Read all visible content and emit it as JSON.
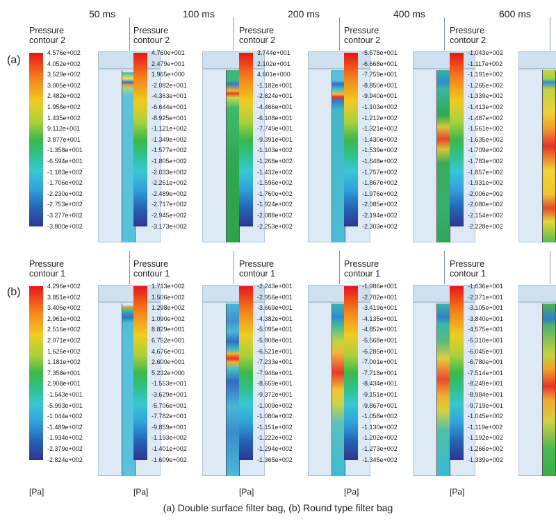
{
  "time_labels": [
    "50 ms",
    "100 ms",
    "200 ms",
    "400 ms",
    "600 ms"
  ],
  "rows": [
    {
      "label": "(a)",
      "panel_title": "Pressure\ncontour 2",
      "panels": [
        {
          "ticks": [
            "4.576e+002",
            "4.052e+002",
            "3.529e+002",
            "3.005e+002",
            "2.482e+002",
            "1.958e+002",
            "1.435e+002",
            "9.112e+001",
            "3.877e+001",
            "-1.358e+001",
            "-6.594e+001",
            "-1.183e+002",
            "-1.706e+002",
            "-2.230e+002",
            "-2.753e+002",
            "-3.277e+002",
            "-3.800e+002"
          ],
          "fill": "linear-gradient(to bottom, #d9e7f1 0%, #d9e7f1 1%, #3fb9b3 1.5%, #ffe04a 5%, #2f79c9 7%, #f0a83a 9%, #9bd4a0 11%, #5cc3d8 15%, #58c2dc 100%)"
        },
        {
          "ticks": [
            "4.760e+001",
            "2.479e+001",
            "1.965e+000",
            "-2.082e+001",
            "-4.363e+001",
            "-6.644e+001",
            "-8.925e+001",
            "-1.121e+002",
            "-1.349e+002",
            "-1.577e+002",
            "-1.805e+002",
            "-2.033e+002",
            "-2.261e+002",
            "-2.489e+002",
            "-2.717e+002",
            "-2.945e+002",
            "-3.173e+002"
          ],
          "fill": "linear-gradient(to bottom, #3db77a 0%, #3db77a 6%, #2f7ccb 8%, #f7b32b 12%, #e9412a 13.5%, #c9d94a 16%, #42b96a 22%, #2ea64f 55%, #2fa34c 100%)"
        },
        {
          "ticks": [
            "3.744e+001",
            "2.102e+001",
            "4.601e+000",
            "-1.182e+001",
            "-2.824e+001",
            "-4.466e+001",
            "-6.108e+001",
            "-7.749e+001",
            "-9.391e+001",
            "-1.103e+002",
            "-1.268e+002",
            "-1.432e+002",
            "-1.596e+002",
            "-1.760e+002",
            "-1.924e+002",
            "-2.088e+002",
            "-2.253e+002"
          ],
          "fill": "linear-gradient(to bottom, #59bfdc 0%, #59bfdc 6%, #2f6fc4 8%, #45bdd2 11%, #f0c238 14%, #e5342b 15.5%, #2d7fcc 18%, #43b7c4 23%, #4fbcd9 100%)"
        },
        {
          "ticks": [
            "-5.578e+001",
            "-6.668e+001",
            "-7.759e+001",
            "-8.850e+001",
            "-9.940e+001",
            "-1.103e+002",
            "-1.212e+002",
            "-1.321e+002",
            "-1.430e+002",
            "-1.539e+002",
            "-1.648e+002",
            "-1.757e+002",
            "-1.867e+002",
            "-1.976e+002",
            "-2.085e+002",
            "-2.194e+002",
            "-2.303e+002"
          ],
          "fill": "linear-gradient(to bottom, #33b59d 0%, #2e8fd0 7%, #39b6a0 11%, #2fa958 26%, #d4c53c 33%, #ea4528 40%, #d6c43a 46%, #38ad57 54%, #36b06a 80%, #2ea65a 100%)"
        },
        {
          "ticks": [
            "-1.043e+002",
            "-1.117e+002",
            "-1.191e+002",
            "-1.265e+002",
            "-1.339e+002",
            "-1.413e+002",
            "-1.487e+002",
            "-1.561e+002",
            "-1.635e+002",
            "-1.709e+002",
            "-1.783e+002",
            "-1.857e+002",
            "-1.931e+002",
            "-2.006e+002",
            "-2.080e+002",
            "-2.154e+002",
            "-2.228e+002"
          ],
          "fill": "linear-gradient(to bottom, #c6d348 0%, #9bd049 5%, #2e8fd0 7%, #bcd44a 11%, #f1cf33 25%, #f09a2a 34%, #e6322a 44%, #f1d534 58%, #eec730 72%, #e44b2a 80%, #e7d33a 88%, #57bd4f 100%)"
        }
      ]
    },
    {
      "label": "(b)",
      "panel_title": "Pressure\ncontour 1",
      "panels": [
        {
          "ticks": [
            "4.296e+002",
            "3.851e+002",
            "3.406e+002",
            "2.961e+002",
            "2.516e+002",
            "2.071e+002",
            "1.626e+002",
            "1.181e+002",
            "7.358e+001",
            "2.908e+001",
            "-1.543e+001",
            "-5.993e+001",
            "-1.044e+002",
            "-1.489e+002",
            "-1.934e+002",
            "-2.379e+002",
            "-2.824e+002"
          ],
          "fill": "linear-gradient(to bottom, #d9e7f1 0%, #d9e7f1 1%, #f2a83a 1.5%, #3cb8a8 4%, #2f6fc4 8%, #47bdd4 11%, #55c1db 20%, #59c2de 100%)"
        },
        {
          "ticks": [
            "1.713e+002",
            "1.506e+002",
            "1.298e+002",
            "1.090e+002",
            "8.829e+001",
            "6.752e+001",
            "4.676e+001",
            "2.600e+001",
            "5.232e+000",
            "-1.553e+001",
            "-3.629e+001",
            "-5.706e+001",
            "-7.782e+001",
            "-9.859e+001",
            "-1.193e+002",
            "-1.401e+002",
            "-1.609e+002"
          ],
          "fill": "linear-gradient(to bottom, #4ab8d8 0%, #3f8fcf 10%, #4bbcd8 16%, #2f6fc4 22%, #44c0c7 27%, #f0b52d 29%, #e5322a 32%, #f1b02e 34%, #45c0c8 38%, #2e6dc2 45%, #4bb6d9 60%, #3a8ccf 75%, #4cb8da 100%)"
        },
        {
          "ticks": [
            "-2.243e+001",
            "-2.956e+001",
            "-3.669e+001",
            "-4.382e+001",
            "-5.095e+001",
            "-5.808e+001",
            "-6.521e+001",
            "-7.233e+001",
            "-7.946e+001",
            "-8.659e+001",
            "-9.372e+001",
            "-1.009e+002",
            "-1.080e+002",
            "-1.151e+002",
            "-1.222e+002",
            "-1.294e+002",
            "-1.365e+002"
          ],
          "fill": "linear-gradient(to bottom, #39b6aa 0%, #2e8ccf 8%, #38b6a0 12%, #bfd546 22%, #f3b93a 28%, #e83a29 40%, #f1c037 50%, #c9d544 58%, #59c0c0 70%, #3dbcd6 100%)"
        },
        {
          "ticks": [
            "-1.986e+001",
            "-2.702e+001",
            "-3.419e+001",
            "-4.135e+001",
            "-4.852e+001",
            "-5.568e+001",
            "-6.285e+001",
            "-7.001e+001",
            "-7.718e+001",
            "-8.434e+001",
            "-9.151e+001",
            "-9.867e+001",
            "-1.058e+002",
            "-1.130e+002",
            "-1.202e+002",
            "-1.273e+002",
            "-1.345e+002"
          ],
          "fill": "linear-gradient(to bottom, #3ab7a6 0%, #2e7fcc 8%, #3ab7a6 12%, #56bd7c 22%, #e4ca3f 32%, #ec4a2c 44%, #f3b22e 54%, #d3d140 62%, #4cc0a9 74%, #3abbd4 100%)"
        },
        {
          "ticks": [
            "-1.636e+001",
            "-2.371e+001",
            "-3.105e+001",
            "-3.840e+001",
            "-4.575e+001",
            "-5.310e+001",
            "-6.045e+001",
            "-6.780e+001",
            "-7.514e+001",
            "-8.249e+001",
            "-8.984e+001",
            "-9.719e+001",
            "-1.045e+002",
            "-1.119e+002",
            "-1.192e+002",
            "-1.266e+002",
            "-1.339e+002"
          ],
          "fill": "linear-gradient(to bottom, #52b44c 0%, #2e7fcc 9%, #52b46a 13%, #c6d33f 30%, #f0a02c 38%, #e6362a 48%, #f0a82e 56%, #d6d03e 68%, #4cb852 84%, #3cae4a 100%)"
        }
      ]
    }
  ],
  "unit": "[Pa]",
  "caption": "(a) Double surface filter bag, (b) Round type filter bag"
}
